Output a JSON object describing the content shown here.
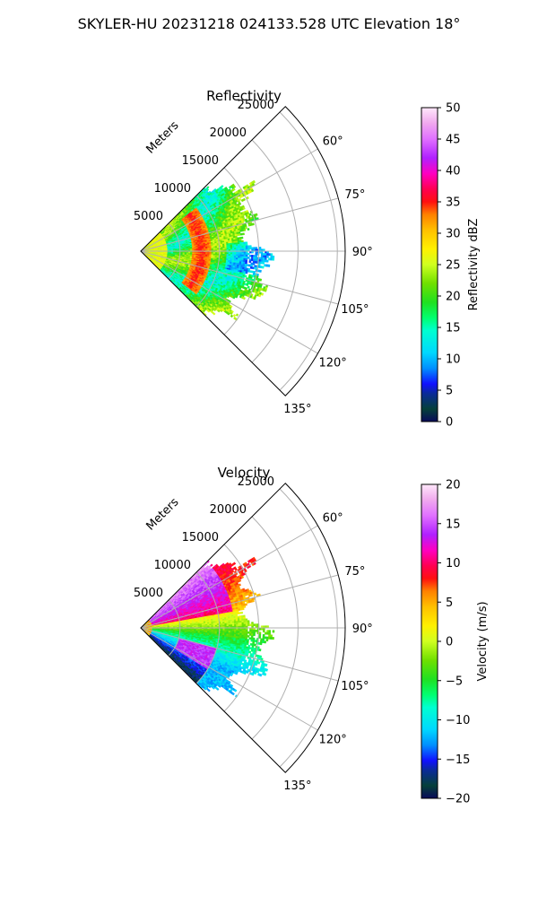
{
  "suptitle": "SKYLER-HU  20231218  024133.528 UTC Elevation 18°",
  "range_axis_label": "Meters",
  "chart_data": [
    {
      "type": "polar_sector_heatmap",
      "title": "Reflectivity",
      "azimuth_range_deg": [
        45,
        135
      ],
      "range_lim_m": [
        0,
        26000
      ],
      "range_ticks": [
        5000,
        10000,
        15000,
        20000,
        25000
      ],
      "range_tick_labels": [
        "5000",
        "10000",
        "15000",
        "20000",
        "25000"
      ],
      "azimuth_ticks": [
        60,
        75,
        90,
        105,
        120,
        135
      ],
      "azimuth_tick_labels": [
        "60°",
        "75°",
        "90°",
        "105°",
        "120°",
        "135°"
      ],
      "grid": true,
      "colorbar": {
        "label": "Reflectivity dBZ",
        "lim": [
          0,
          50
        ],
        "ticks": [
          "0",
          "5",
          "10",
          "15",
          "20",
          "25",
          "30",
          "35",
          "40",
          "45",
          "50"
        ]
      },
      "data_extent_m": [
        0,
        17000
      ],
      "features": [
        {
          "description": "ring",
          "range_m": [
            7000,
            8500
          ],
          "value_approx": 35
        },
        {
          "description": "background echo",
          "value_range": [
            15,
            28
          ]
        }
      ]
    },
    {
      "type": "polar_sector_heatmap",
      "title": "Velocity",
      "azimuth_range_deg": [
        45,
        135
      ],
      "range_lim_m": [
        0,
        26000
      ],
      "range_ticks": [
        5000,
        10000,
        15000,
        20000,
        25000
      ],
      "range_tick_labels": [
        "5000",
        "10000",
        "15000",
        "20000",
        "25000"
      ],
      "azimuth_ticks": [
        60,
        75,
        90,
        105,
        120,
        135
      ],
      "azimuth_tick_labels": [
        "60°",
        "75°",
        "90°",
        "105°",
        "120°",
        "135°"
      ],
      "grid": true,
      "colorbar": {
        "label": "Velocity (m/s)",
        "lim": [
          -20,
          20
        ],
        "ticks": [
          "−20",
          "−15",
          "−10",
          "−5",
          "0",
          "5",
          "10",
          "15",
          "20"
        ]
      },
      "data_extent_m": [
        0,
        17000
      ],
      "features": [
        {
          "azimuth_deg": [
            50,
            80
          ],
          "value_approx": 12
        },
        {
          "azimuth_deg": [
            82,
            95
          ],
          "value_approx": 2
        },
        {
          "azimuth_deg": [
            98,
            130
          ],
          "value_approx": -9
        }
      ]
    }
  ],
  "colors": {
    "axis": "#000000",
    "grid": "#b0b0b0"
  }
}
